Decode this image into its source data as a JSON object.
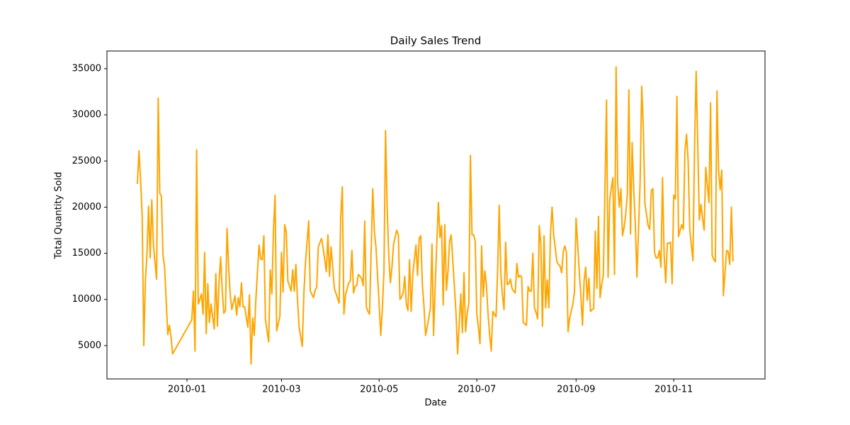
{
  "chart_data": {
    "type": "line",
    "title": "Daily Sales Trend",
    "x_label": "Date",
    "y_label": "Total Quantity Sold",
    "x": [
      14579,
      14580,
      14581,
      14582,
      14583,
      14584,
      14585,
      14586,
      14587,
      14588,
      14589,
      14590,
      14591,
      14592,
      14593,
      14594,
      14595,
      14596,
      14598,
      14599,
      14600,
      14601,
      14613,
      14614,
      14615,
      14616,
      14617,
      14618,
      14619,
      14620,
      14621,
      14622,
      14623,
      14624,
      14625,
      14627,
      14628,
      14629,
      14630,
      14631,
      14632,
      14633,
      14634,
      14635,
      14636,
      14637,
      14638,
      14639,
      14640,
      14641,
      14642,
      14643,
      14644,
      14645,
      14646,
      14648,
      14649,
      14650,
      14651,
      14652,
      14653,
      14655,
      14656,
      14657,
      14658,
      14659,
      14661,
      14662,
      14663,
      14664,
      14665,
      14666,
      14668,
      14669,
      14670,
      14671,
      14672,
      14673,
      14675,
      14676,
      14677,
      14678,
      14679,
      14680,
      14682,
      14683,
      14684,
      14686,
      14687,
      14689,
      14690,
      14691,
      14692,
      14694,
      14695,
      14697,
      14698,
      14699,
      14700,
      14701,
      14702,
      14705,
      14706,
      14707,
      14708,
      14709,
      14711,
      14712,
      14713,
      14714,
      14715,
      14716,
      14717,
      14719,
      14720,
      14721,
      14722,
      14723,
      14724,
      14726,
      14727,
      14728,
      14730,
      14731,
      14732,
      14733,
      14734,
      14735,
      14736,
      14737,
      14738,
      14739,
      14741,
      14742,
      14743,
      14744,
      14745,
      14746,
      14747,
      14748,
      14749,
      14750,
      14751,
      14753,
      14754,
      14755,
      14756,
      14757,
      14758,
      14759,
      14760,
      14762,
      14763,
      14764,
      14765,
      14767,
      14768,
      14769,
      14770,
      14771,
      14772,
      14773,
      14774,
      14775,
      14778,
      14779,
      14781,
      14782,
      14783,
      14784,
      14785,
      14786,
      14787,
      14788,
      14789,
      14790,
      14791,
      14792,
      14793,
      14794,
      14795,
      14796,
      14797,
      14798,
      14799,
      14800,
      14801,
      14803,
      14804,
      14805,
      14806,
      14807,
      14808,
      14809,
      14810,
      14811,
      14812,
      14813,
      14814,
      14815,
      14816,
      14817,
      14818,
      14819,
      14820,
      14822,
      14823,
      14824,
      14825,
      14826,
      14827,
      14828,
      14829,
      14830,
      14831,
      14832,
      14833,
      14834,
      14835,
      14836,
      14837,
      14838,
      14839,
      14841,
      14842,
      14843,
      14844,
      14845,
      14846,
      14847,
      14848,
      14849,
      14851,
      14852,
      14853,
      14855,
      14856,
      14857,
      14858,
      14859,
      14860,
      14861,
      14862,
      14863,
      14864,
      14865,
      14866,
      14867,
      14868,
      14869,
      14870,
      14871,
      14872,
      14873,
      14874,
      14876,
      14877,
      14878,
      14879,
      14880,
      14881,
      14882,
      14883,
      14884,
      14885,
      14886,
      14887,
      14888,
      14889,
      14890,
      14891,
      14893,
      14894,
      14895,
      14896,
      14898,
      14899,
      14900,
      14901,
      14902,
      14903,
      14904,
      14905,
      14906,
      14907,
      14908,
      14909,
      14910,
      14911,
      14912,
      14913,
      14914,
      14915,
      14916,
      14917,
      14918,
      14919,
      14920,
      14921,
      14922,
      14923,
      14924,
      14926,
      14927,
      14928,
      14930,
      14931,
      14932,
      14933,
      14934,
      14936,
      14937,
      14938,
      14939,
      14940,
      14941,
      14942,
      14943,
      14944,
      14945,
      14947,
      14948,
      14949,
      14950,
      14951
    ],
    "series": [
      {
        "name": "Total Quantity Sold",
        "color": "#ffa500",
        "values": [
          22500,
          26100,
          23000,
          19000,
          5000,
          12000,
          15000,
          20100,
          14500,
          20800,
          16000,
          14000,
          12200,
          31800,
          21500,
          21200,
          14800,
          13500,
          6200,
          7200,
          6000,
          4100,
          7800,
          10900,
          4400,
          26200,
          9500,
          10000,
          10600,
          8400,
          15100,
          6300,
          11700,
          7500,
          9500,
          6800,
          12800,
          7100,
          11800,
          14600,
          11000,
          8500,
          8800,
          17700,
          13500,
          10500,
          8900,
          9700,
          10400,
          8300,
          10200,
          9200,
          11800,
          9200,
          9200,
          7000,
          10500,
          3000,
          8000,
          6100,
          10000,
          15900,
          14400,
          14300,
          16900,
          7800,
          5400,
          13200,
          10600,
          17500,
          21300,
          6600,
          8200,
          15100,
          10800,
          18100,
          17300,
          12000,
          10900,
          13200,
          10900,
          13800,
          10000,
          7000,
          4900,
          10700,
          14000,
          18500,
          10900,
          10200,
          11000,
          11300,
          15700,
          16600,
          15600,
          13000,
          17000,
          12500,
          15700,
          13500,
          11200,
          9600,
          19000,
          22200,
          8400,
          10500,
          11800,
          12000,
          15300,
          10700,
          11400,
          11500,
          12700,
          12300,
          11500,
          18500,
          9200,
          8700,
          8400,
          22000,
          17400,
          15700,
          9500,
          6100,
          9000,
          13000,
          28300,
          20000,
          14800,
          11800,
          13500,
          16000,
          17500,
          17000,
          10000,
          10300,
          10700,
          12500,
          9500,
          8800,
          14300,
          8700,
          12700,
          15900,
          12600,
          16600,
          16900,
          11600,
          9300,
          6100,
          7000,
          9000,
          16000,
          6100,
          11500,
          20500,
          16700,
          18000,
          9400,
          18100,
          11000,
          13000,
          16300,
          17000,
          8600,
          4100,
          10600,
          6400,
          12900,
          6500,
          8500,
          9600,
          25600,
          17000,
          17000,
          16300,
          8400,
          7000,
          5200,
          15800,
          10300,
          13100,
          11600,
          8500,
          6200,
          4400,
          8700,
          8100,
          13100,
          20200,
          12700,
          10500,
          8900,
          16200,
          11600,
          11700,
          12200,
          11200,
          10900,
          10700,
          13900,
          12400,
          12600,
          12400,
          7500,
          7200,
          11400,
          10900,
          10900,
          15000,
          9100,
          8600,
          7900,
          18000,
          16000,
          7100,
          16900,
          9100,
          12100,
          9100,
          17000,
          20000,
          17000,
          14100,
          13800,
          13600,
          12900,
          15200,
          15800,
          15100,
          6500,
          8000,
          9500,
          10800,
          18800,
          13000,
          10400,
          7200,
          12000,
          13500,
          9900,
          12300,
          8700,
          8900,
          9000,
          17400,
          11200,
          19000,
          10200,
          11600,
          12600,
          21500,
          31600,
          12400,
          20800,
          23200,
          12700,
          35200,
          22600,
          20000,
          22000,
          16900,
          17800,
          19200,
          21400,
          32700,
          17100,
          27000,
          22000,
          18200,
          12400,
          22700,
          33100,
          28700,
          20400,
          18000,
          17600,
          21800,
          22000,
          15100,
          14500,
          14500,
          15300,
          13500,
          23200,
          14800,
          11800,
          16100,
          16100,
          16200,
          11700,
          21300,
          20900,
          32000,
          16800,
          17500,
          18100,
          17600,
          26100,
          27900,
          25000,
          17600,
          14200,
          26500,
          34700,
          18600,
          20300,
          18800,
          17500,
          24300,
          20500,
          31300,
          14800,
          14300,
          14100,
          32600,
          24000,
          21900,
          24000,
          10400,
          15300,
          15200,
          13800,
          20000,
          14100
        ]
      }
    ],
    "xlim": [
      14560,
      14971
    ],
    "ylim": [
      1385,
      36915
    ],
    "xticks": [
      {
        "value": 14610,
        "label": "2010-01"
      },
      {
        "value": 14669,
        "label": "2010-03"
      },
      {
        "value": 14730,
        "label": "2010-05"
      },
      {
        "value": 14791,
        "label": "2010-07"
      },
      {
        "value": 14853,
        "label": "2010-09"
      },
      {
        "value": 14914,
        "label": "2010-11"
      }
    ],
    "yticks": [
      5000,
      10000,
      15000,
      20000,
      25000,
      30000,
      35000
    ]
  }
}
